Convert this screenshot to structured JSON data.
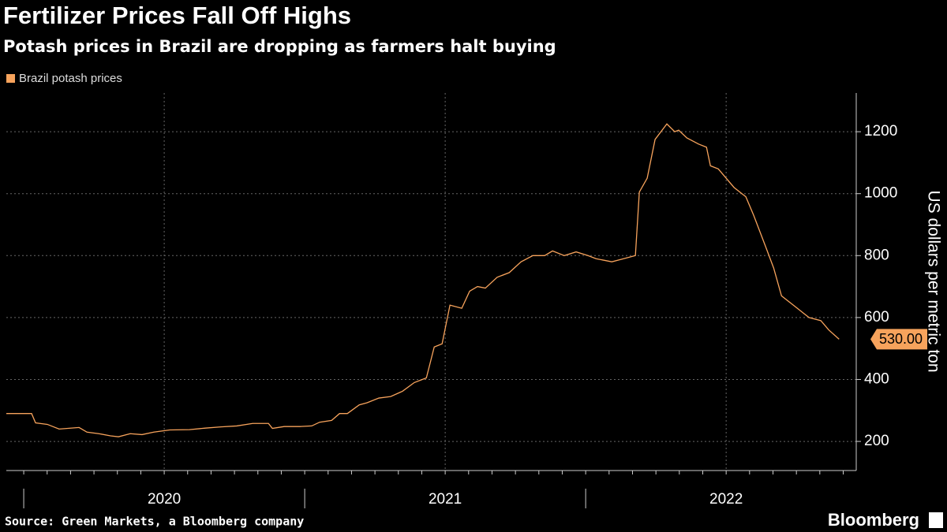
{
  "chart_data": {
    "type": "line",
    "title": "Fertilizer Prices Fall Off Highs",
    "subtitle": "Potash prices in Brazil are dropping as farmers halt buying",
    "y_axis_label": "US dollars per metric ton",
    "source": "Source: Green Markets, a Bloomberg company",
    "brand": "Bloomberg",
    "grid": true,
    "legend_position": "top-left",
    "x": [
      2019.938,
      2020.028,
      2020.042,
      2020.084,
      2020.126,
      2020.197,
      2020.225,
      2020.267,
      2020.309,
      2020.337,
      2020.379,
      2020.421,
      2020.463,
      2020.52,
      2020.59,
      2020.646,
      2020.702,
      2020.758,
      2020.815,
      2020.871,
      2020.885,
      2020.927,
      2020.983,
      2021.025,
      2021.053,
      2021.096,
      2021.124,
      2021.152,
      2021.194,
      2021.222,
      2021.264,
      2021.306,
      2021.348,
      2021.39,
      2021.433,
      2021.461,
      2021.489,
      2021.517,
      2021.559,
      2021.587,
      2021.615,
      2021.643,
      2021.685,
      2021.728,
      2021.77,
      2021.812,
      2021.854,
      2021.882,
      2021.924,
      2021.966,
      2022.008,
      2022.037,
      2022.065,
      2022.093,
      2022.135,
      2022.177,
      2022.191,
      2022.219,
      2022.247,
      2022.289,
      2022.317,
      2022.331,
      2022.36,
      2022.402,
      2022.43,
      2022.444,
      2022.472,
      2022.528,
      2022.57,
      2022.598,
      2022.64,
      2022.669,
      2022.697,
      2022.739,
      2022.795,
      2022.837,
      2022.865,
      2022.902
    ],
    "series": [
      {
        "name": "Brazil potash prices",
        "color": "#f7a35c",
        "values": [
          290,
          290,
          260,
          255,
          240,
          245,
          230,
          225,
          218,
          215,
          225,
          222,
          230,
          237,
          238,
          243,
          247,
          250,
          258,
          258,
          242,
          248,
          248,
          250,
          262,
          268,
          290,
          290,
          318,
          325,
          340,
          345,
          362,
          390,
          405,
          505,
          515,
          640,
          630,
          685,
          700,
          695,
          730,
          745,
          780,
          800,
          800,
          815,
          800,
          812,
          800,
          790,
          785,
          780,
          790,
          800,
          1005,
          1050,
          1175,
          1225,
          1200,
          1205,
          1180,
          1160,
          1150,
          1090,
          1080,
          1020,
          990,
          930,
          830,
          760,
          670,
          640,
          600,
          590,
          560,
          530
        ],
        "last_value_label": "530.00"
      }
    ],
    "xlim": [
      2019.938,
      2022.963
    ],
    "xticks": [
      {
        "value": 2020.5,
        "label": "2020"
      },
      {
        "value": 2021.5,
        "label": "2021"
      },
      {
        "value": 2022.5,
        "label": "2022"
      }
    ],
    "ylim": [
      106,
      1325
    ],
    "yticks": [
      200,
      400,
      600,
      800,
      1000,
      1200
    ]
  }
}
